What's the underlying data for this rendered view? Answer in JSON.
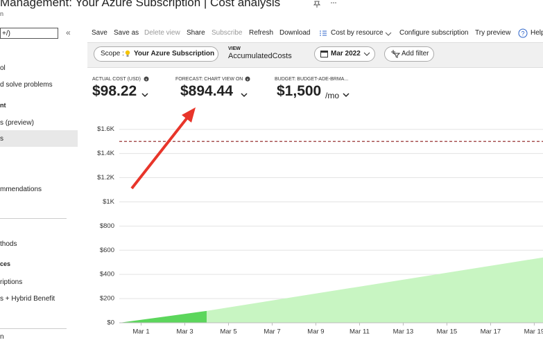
{
  "header": {
    "title": "Management: Your Azure Subscription | Cost analysis",
    "subtitle": "n"
  },
  "sidebar": {
    "search": "+/)",
    "collapse": "«",
    "items": [
      "ol",
      "d solve problems",
      "nt",
      "s (preview)",
      "s",
      "mmendations",
      "thods",
      "ces",
      "riptions",
      "s + Hybrid Benefit",
      "n"
    ]
  },
  "toolbar": [
    "Save",
    "Save as",
    "Delete view",
    "Share",
    "Subscribe",
    "Refresh",
    "Download",
    "Cost by resource",
    "Configure subscription",
    "Try preview",
    "Help"
  ],
  "filters": {
    "scope_label": "Scope :",
    "scope_value": "Your Azure Subscription",
    "view_label": "VIEW",
    "view_value": "AccumulatedCosts",
    "date": "Mar 2022",
    "add_filter": "Add filter"
  },
  "kpis": [
    {
      "label": "ACTUAL COST (USD)",
      "value": "$98.22"
    },
    {
      "label": "FORECAST: CHART VIEW ON",
      "value": "$894.44"
    },
    {
      "label": "BUDGET: BUDGET-ADE-BRMA...",
      "value": "$1,500",
      "unit": "/mo"
    }
  ],
  "chart_data": {
    "type": "area",
    "xlim": [
      0,
      19.4
    ],
    "xticks": [
      {
        "value": 1,
        "label": "Mar 1"
      },
      {
        "value": 3,
        "label": "Mar 3"
      },
      {
        "value": 5,
        "label": "Mar 5"
      },
      {
        "value": 7,
        "label": "Mar 7"
      },
      {
        "value": 9,
        "label": "Mar 9"
      },
      {
        "value": 11,
        "label": "Mar 11"
      },
      {
        "value": 13,
        "label": "Mar 13"
      },
      {
        "value": 15,
        "label": "Mar 15"
      },
      {
        "value": 17,
        "label": "Mar 17"
      },
      {
        "value": 19,
        "label": "Mar 19"
      }
    ],
    "ylim": [
      0,
      1650
    ],
    "yticks": [
      {
        "value": 0,
        "label": "$0"
      },
      {
        "value": 200,
        "label": "$200"
      },
      {
        "value": 400,
        "label": "$400"
      },
      {
        "value": 600,
        "label": "$600"
      },
      {
        "value": 800,
        "label": "$800"
      },
      {
        "value": 1000,
        "label": "$1K"
      },
      {
        "value": 1200,
        "label": "$1.2K"
      },
      {
        "value": 1400,
        "label": "$1.4K"
      },
      {
        "value": 1600,
        "label": "$1.6K"
      }
    ],
    "grid": true,
    "series": [
      {
        "color": "#c8f5c2",
        "x": [
          4,
          19.4
        ],
        "values": [
          98.22,
          540
        ]
      },
      {
        "color": "#5cd65c",
        "x": [
          0,
          4
        ],
        "values": [
          0,
          98.22
        ]
      }
    ],
    "budget": {
      "value": 1500,
      "color": "#8b1a1a"
    }
  }
}
